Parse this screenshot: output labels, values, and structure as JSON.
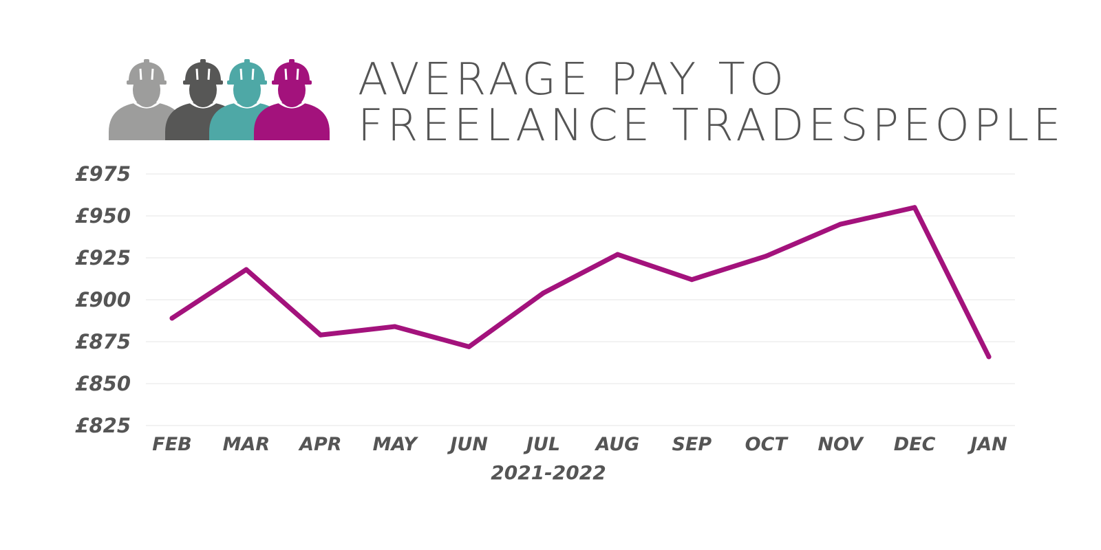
{
  "title": {
    "line1": "AVERAGE PAY TO",
    "line2": "FREELANCE TRADESPEOPLE"
  },
  "logo": {
    "icon": "construction-workers-icon",
    "colors": [
      "#9d9d9c",
      "#575756",
      "#4ea8a6",
      "#a3127c"
    ]
  },
  "colors": {
    "series": "#a3127c",
    "text": "#555555",
    "grid": "#e6e6e6"
  },
  "chart_data": {
    "type": "line",
    "title": "AVERAGE PAY TO FREELANCE TRADESPEOPLE",
    "xlabel": "2021-2022",
    "ylabel": "",
    "categories": [
      "FEB",
      "MAR",
      "APR",
      "MAY",
      "JUN",
      "JUL",
      "AUG",
      "SEP",
      "OCT",
      "NOV",
      "DEC",
      "JAN"
    ],
    "series": [
      {
        "values": [
          889,
          918,
          879,
          884,
          872,
          904,
          927,
          912,
          926,
          945,
          955,
          866
        ]
      }
    ],
    "ylim": [
      825,
      975
    ],
    "yticks": [
      975,
      950,
      925,
      900,
      875,
      850,
      825
    ],
    "ytick_labels": [
      "£975",
      "£950",
      "£925",
      "£900",
      "£875",
      "£850",
      "£825"
    ],
    "grid": true,
    "legend": "none"
  }
}
